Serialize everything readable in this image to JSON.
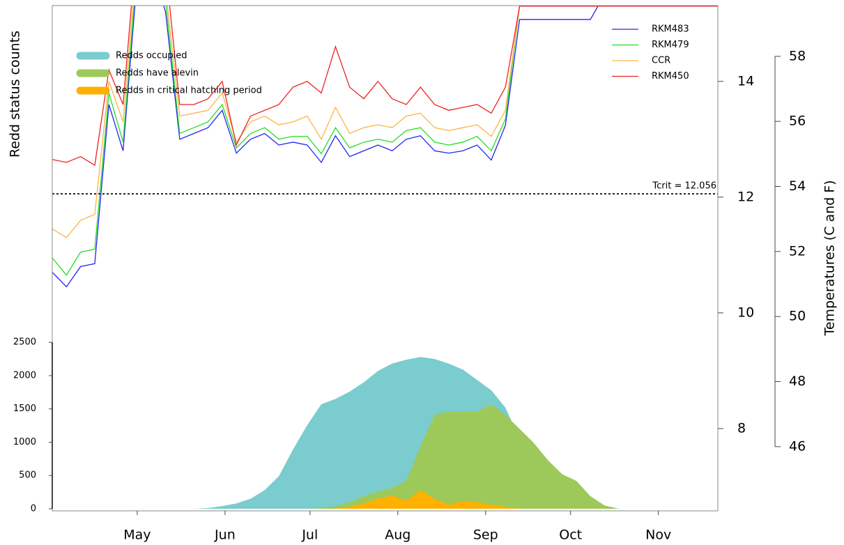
{
  "chart_data": {
    "type": "line",
    "y_label": "Redd status counts",
    "y2_label": "Temperatures (C and F)",
    "x": [
      0,
      5,
      10,
      15,
      20,
      25,
      30,
      35,
      40,
      45,
      50,
      55,
      60,
      65,
      70,
      75,
      80,
      85,
      90,
      95,
      100,
      105,
      110,
      115,
      120,
      125,
      130,
      135,
      140,
      145,
      150,
      155,
      160,
      165,
      170,
      175,
      180,
      185,
      190,
      195,
      200,
      205,
      210,
      215,
      220,
      225,
      230,
      235
    ],
    "xlim": [
      0,
      235
    ],
    "xticks": [
      {
        "value": 30,
        "label": "May"
      },
      {
        "value": 61,
        "label": "Jun"
      },
      {
        "value": 91,
        "label": "Jul"
      },
      {
        "value": 122,
        "label": "Aug"
      },
      {
        "value": 153,
        "label": "Sep"
      },
      {
        "value": 183,
        "label": "Oct"
      },
      {
        "value": 214,
        "label": "Nov"
      }
    ],
    "ylim": [
      0,
      7560
    ],
    "yticks": [
      0,
      500,
      1000,
      1500,
      2000,
      2500
    ],
    "y2lim": [
      6.614,
      15.31
    ],
    "y2ticks": [
      8,
      10,
      12,
      14
    ],
    "y3lim": [
      44.09,
      59.56
    ],
    "y3ticks": [
      46,
      48,
      50,
      52,
      54,
      56,
      58
    ],
    "threshold": {
      "value": 12.056,
      "label": "Tcrit = 12.056",
      "axis": "y2"
    },
    "series": [
      {
        "name": "Redds occupied",
        "type": "area",
        "color": "#7accce",
        "values": [
          0,
          0,
          0,
          0,
          0,
          0,
          0,
          0,
          0,
          0,
          0,
          10,
          40,
          80,
          150,
          280,
          490,
          890,
          1255,
          1570,
          1650,
          1760,
          1900,
          2070,
          2180,
          2240,
          2280,
          2250,
          2180,
          2090,
          1935,
          1780,
          1520,
          1050,
          730,
          575,
          470,
          315,
          160,
          50,
          0,
          0,
          0,
          0,
          0,
          0,
          0,
          0
        ]
      },
      {
        "name": "Redds have alevin",
        "type": "area",
        "color": "#9dc95a",
        "values": [
          0,
          0,
          0,
          0,
          0,
          0,
          0,
          0,
          0,
          0,
          0,
          0,
          0,
          0,
          0,
          0,
          0,
          0,
          0,
          10,
          40,
          100,
          190,
          260,
          315,
          420,
          940,
          1410,
          1460,
          1460,
          1460,
          1570,
          1410,
          1200,
          990,
          730,
          520,
          420,
          190,
          50,
          0,
          0,
          0,
          0,
          0,
          0,
          0,
          0
        ]
      },
      {
        "name": "Redds in critical hatching period",
        "type": "area",
        "color": "#ffb000",
        "values": [
          0,
          0,
          0,
          0,
          0,
          0,
          0,
          0,
          0,
          0,
          0,
          0,
          0,
          0,
          0,
          0,
          0,
          0,
          0,
          0,
          0,
          30,
          80,
          150,
          200,
          120,
          280,
          150,
          60,
          120,
          100,
          60,
          30,
          0,
          0,
          0,
          0,
          0,
          0,
          0,
          0,
          0,
          0,
          0,
          0,
          0,
          0,
          0
        ]
      },
      {
        "name": "RKM483",
        "type": "line",
        "axis": "y2",
        "color": "#2424f0",
        "values": [
          10.7,
          10.45,
          10.8,
          10.85,
          13.6,
          12.8,
          15.8,
          16.0,
          15.2,
          13.0,
          13.1,
          13.2,
          13.5,
          12.76,
          13.0,
          13.1,
          12.9,
          12.95,
          12.9,
          12.6,
          13.06,
          12.7,
          12.8,
          12.9,
          12.8,
          13.0,
          13.06,
          12.8,
          12.76,
          12.8,
          12.9,
          12.64,
          13.24,
          15.07,
          15.07,
          15.07,
          15.07,
          15.07,
          15.07,
          15.5,
          15.5,
          15.5,
          15.5,
          15.5,
          15.5,
          15.5,
          15.5,
          15.5
        ]
      },
      {
        "name": "RKM479",
        "type": "line",
        "axis": "y2",
        "color": "#22dd22",
        "values": [
          10.95,
          10.65,
          11.05,
          11.1,
          13.8,
          12.95,
          16.0,
          16.2,
          15.4,
          13.1,
          13.2,
          13.3,
          13.6,
          12.85,
          13.1,
          13.2,
          13.0,
          13.05,
          13.05,
          12.75,
          13.2,
          12.85,
          12.95,
          13.0,
          12.95,
          13.15,
          13.2,
          12.95,
          12.9,
          12.95,
          13.05,
          12.8,
          13.35,
          15.3,
          15.3,
          15.3,
          15.3,
          15.3,
          15.3,
          15.3,
          15.3,
          15.3,
          15.3,
          15.3,
          15.3,
          15.3,
          15.3,
          15.3
        ]
      },
      {
        "name": "CCR",
        "type": "line",
        "axis": "y2",
        "color": "#ffb347",
        "values": [
          11.45,
          11.3,
          11.6,
          11.7,
          14.0,
          13.3,
          16.2,
          16.4,
          15.6,
          13.4,
          13.45,
          13.5,
          13.8,
          12.95,
          13.3,
          13.4,
          13.25,
          13.3,
          13.4,
          13.0,
          13.55,
          13.1,
          13.2,
          13.25,
          13.2,
          13.4,
          13.45,
          13.2,
          13.15,
          13.2,
          13.25,
          13.05,
          13.5,
          15.3,
          15.3,
          15.3,
          15.3,
          15.3,
          15.3,
          15.3,
          15.3,
          15.3,
          15.3,
          15.3,
          15.3,
          15.3,
          15.3,
          15.3
        ]
      },
      {
        "name": "RKM450",
        "type": "line",
        "axis": "y2",
        "color": "#ee2222",
        "values": [
          12.65,
          12.6,
          12.7,
          12.55,
          14.2,
          13.6,
          16.5,
          16.7,
          16.0,
          13.6,
          13.6,
          13.7,
          14.0,
          12.9,
          13.4,
          13.5,
          13.6,
          13.9,
          14.0,
          13.8,
          14.6,
          13.9,
          13.7,
          14.0,
          13.7,
          13.6,
          13.9,
          13.6,
          13.5,
          13.55,
          13.6,
          13.45,
          13.9,
          15.3,
          15.3,
          15.3,
          15.3,
          15.3,
          15.3,
          15.3,
          15.3,
          15.3,
          15.3,
          15.3,
          15.3,
          15.3,
          15.3,
          15.3
        ]
      }
    ]
  }
}
